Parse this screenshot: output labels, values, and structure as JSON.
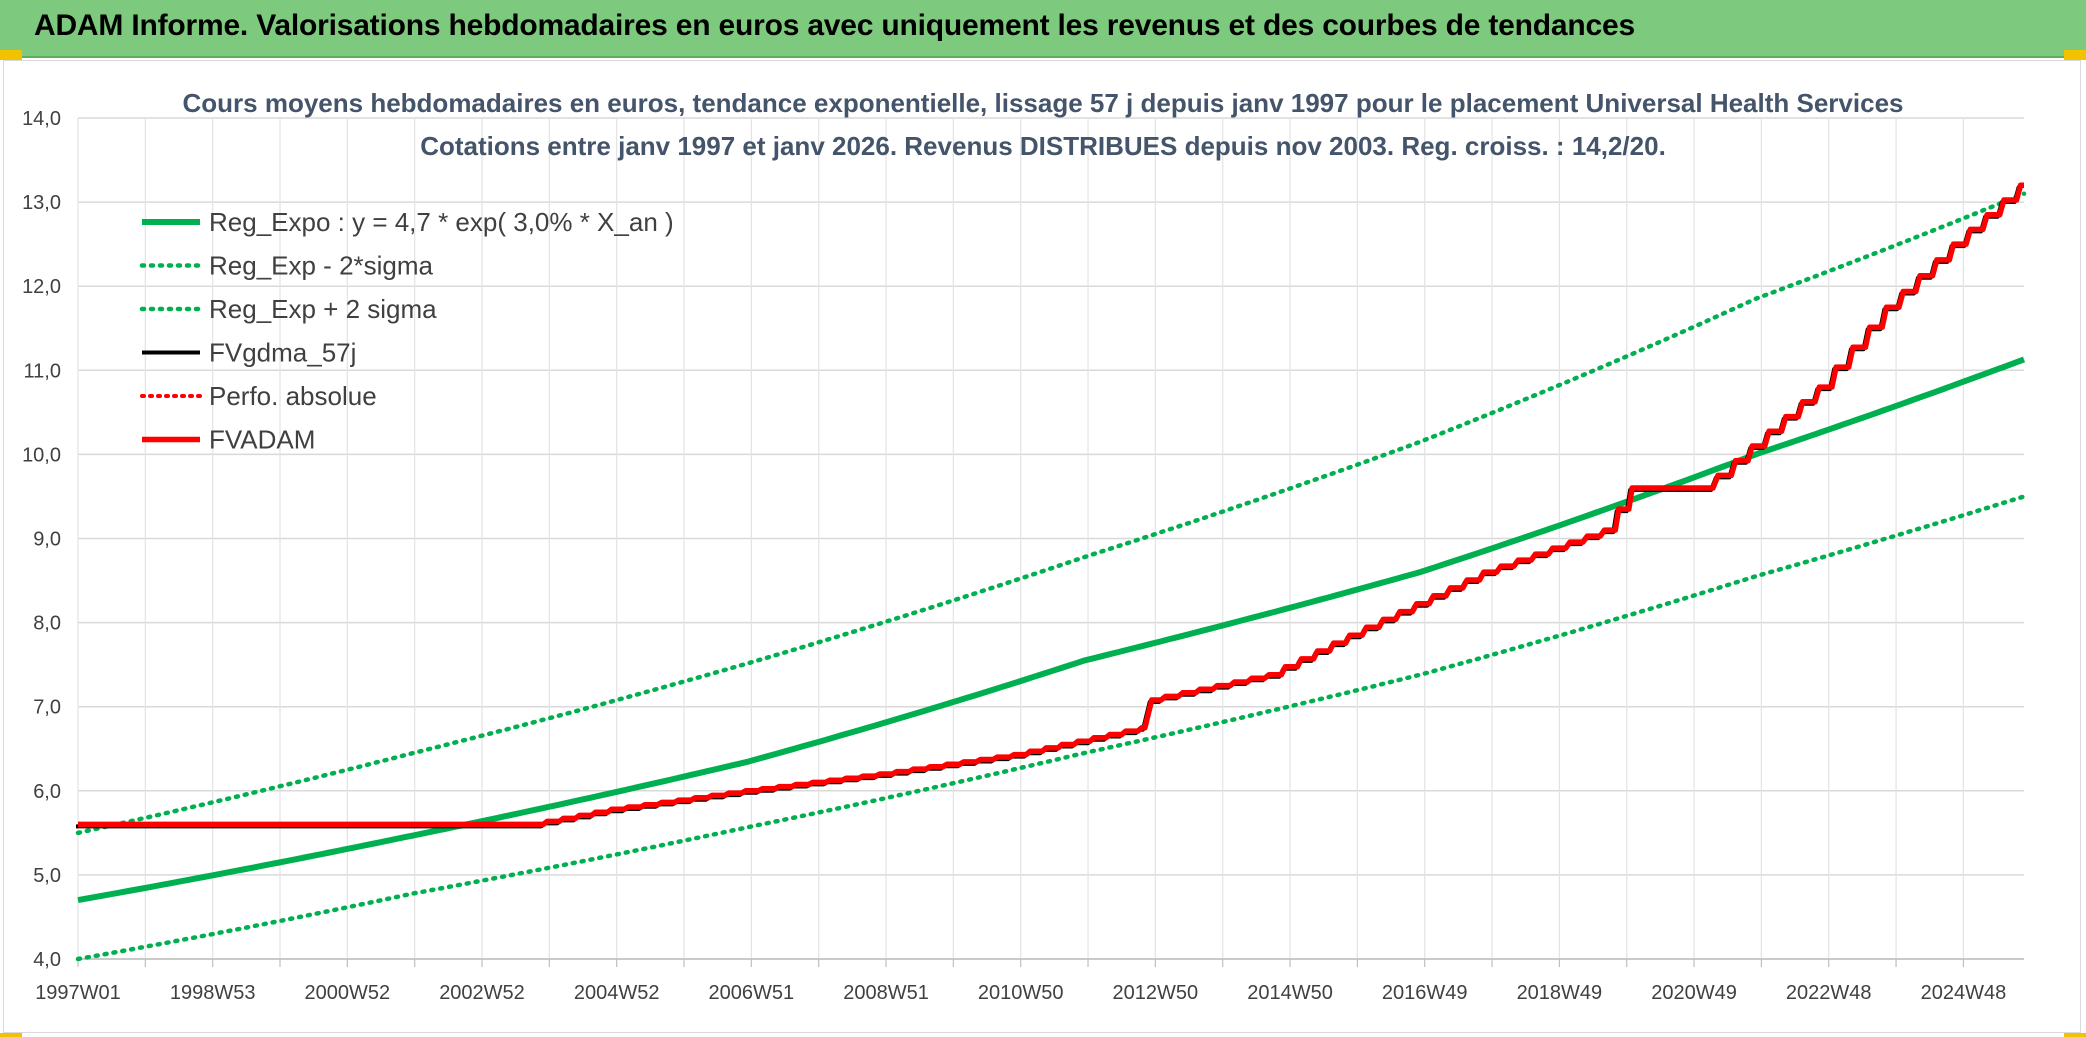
{
  "header": {
    "title": "ADAM Informe. Valorisations hebdomadaires en euros avec uniquement les revenus et des courbes de tendances"
  },
  "colors": {
    "banner": "#7dc97d",
    "accent_corner": "#f2c200",
    "reg_green": "#00b050",
    "fvadam_red": "#ff0000",
    "fvgdma_black": "#000000"
  },
  "chart_data": {
    "type": "line",
    "title_line1": "Cours moyens hebdomadaires en euros, tendance exponentielle, lissage 57 j depuis janv 1997 pour le placement Universal Health Services",
    "title_line2": "Cotations entre janv 1997 et janv 2026. Revenus DISTRIBUES depuis nov 2003. Reg. croiss. : 14,2/20.",
    "ylim": [
      4.0,
      14.0
    ],
    "y_ticks": [
      "4,0",
      "5,0",
      "6,0",
      "7,0",
      "8,0",
      "9,0",
      "10,0",
      "11,0",
      "12,0",
      "13,0",
      "14,0"
    ],
    "x_range_years": [
      1997.0,
      2026.0
    ],
    "x_ticks": [
      "1997W01",
      "1998W53",
      "2000W52",
      "2002W52",
      "2004W52",
      "2006W51",
      "2008W51",
      "2010W50",
      "2012W50",
      "2014W50",
      "2016W49",
      "2018W49",
      "2020W49",
      "2022W48",
      "2024W48"
    ],
    "grid": true,
    "legend_position": "top-left",
    "series": [
      {
        "name": "Reg_Expo : y = 4,7 * exp( 3,0% *  X_an )",
        "style": "solid-green",
        "x": [
          1997,
          2002,
          2007,
          2012,
          2017,
          2022,
          2026
        ],
        "y": [
          4.7,
          5.47,
          6.35,
          7.55,
          8.6,
          10.0,
          11.13
        ]
      },
      {
        "name": "Reg_Exp - 2*sigma",
        "style": "dotted-green",
        "x": [
          1997,
          2002,
          2007,
          2012,
          2017,
          2022,
          2026
        ],
        "y": [
          4.0,
          4.78,
          5.57,
          6.45,
          7.38,
          8.55,
          9.5
        ]
      },
      {
        "name": "Reg_Exp + 2 sigma",
        "style": "dotted-green",
        "x": [
          1997,
          2002,
          2007,
          2012,
          2017,
          2022,
          2026
        ],
        "y": [
          5.5,
          6.45,
          7.52,
          8.78,
          10.15,
          11.85,
          13.1
        ]
      },
      {
        "name": "FVgdma_57j",
        "style": "solid-black",
        "x": [
          1997,
          2003.8,
          2005,
          2007,
          2009,
          2011,
          2012.9,
          2013.0,
          2014.8,
          2016,
          2018,
          2019.8,
          2020.2,
          2021.2,
          2021.5,
          2023,
          2024,
          2025,
          2026
        ],
        "y": [
          5.6,
          5.6,
          5.78,
          6.0,
          6.2,
          6.43,
          6.75,
          7.08,
          7.38,
          7.85,
          8.6,
          9.1,
          9.6,
          9.6,
          9.75,
          10.8,
          11.75,
          12.5,
          13.2
        ]
      },
      {
        "name": "Perfo. absolue",
        "style": "dotted-red",
        "x": [],
        "y": []
      },
      {
        "name": "FVADAM",
        "style": "solid-red-staircase",
        "x": [
          1997,
          2003.8,
          2005,
          2007,
          2009,
          2011,
          2012.9,
          2013.0,
          2014.8,
          2016,
          2018,
          2019.8,
          2020.2,
          2021.2,
          2021.5,
          2023,
          2024,
          2025,
          2026
        ],
        "y": [
          5.6,
          5.6,
          5.78,
          6.0,
          6.2,
          6.43,
          6.75,
          7.08,
          7.38,
          7.85,
          8.6,
          9.1,
          9.6,
          9.6,
          9.75,
          10.8,
          11.75,
          12.5,
          13.2
        ]
      }
    ]
  }
}
